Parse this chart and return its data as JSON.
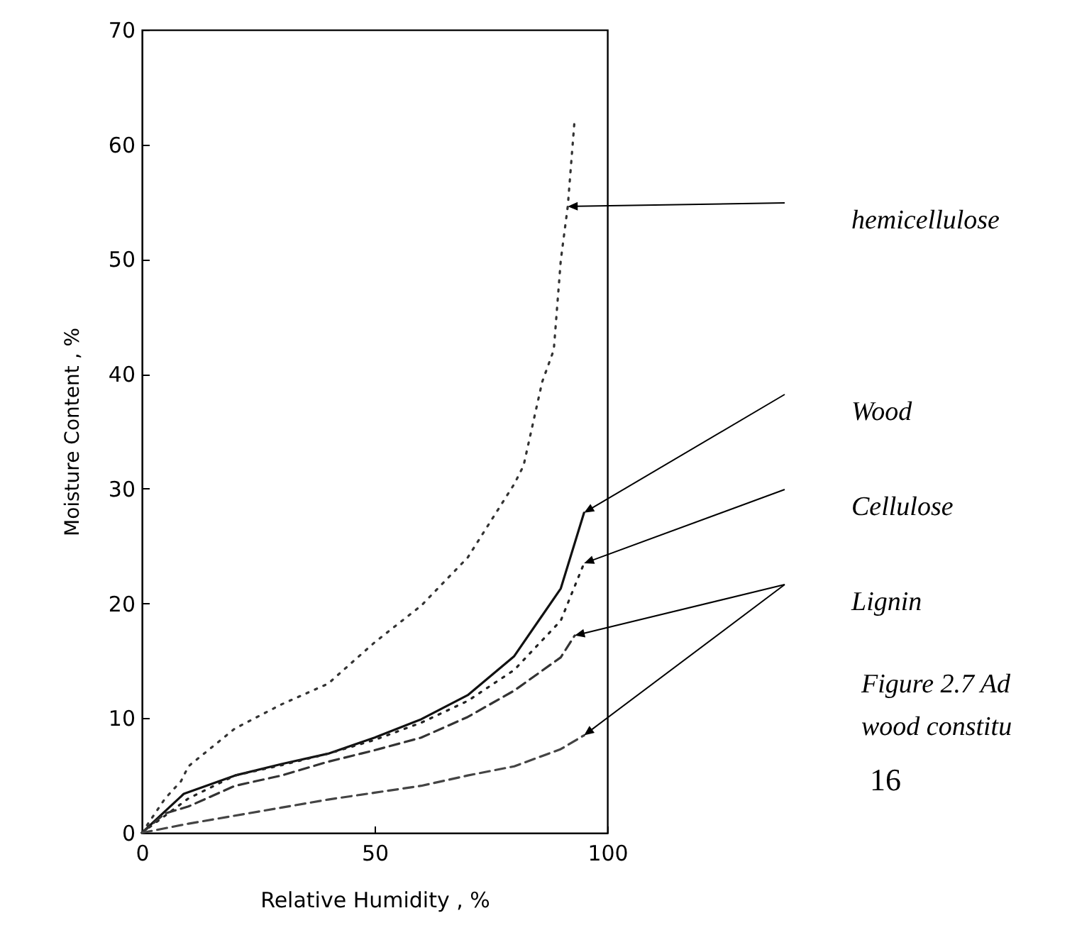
{
  "chart_data": {
    "type": "line",
    "xlabel": "Relative Humidity , %",
    "ylabel": "Moisture Content , %",
    "xlim": [
      0,
      100
    ],
    "xticks": [
      0,
      50,
      100
    ],
    "ylim": [
      0,
      70
    ],
    "yticks": [
      0,
      10,
      20,
      30,
      40,
      50,
      60,
      70
    ],
    "grid": false,
    "series": [
      {
        "name": "hemicellulose",
        "color": "#333333",
        "line_style": "dotted",
        "x": [
          0,
          5,
          8.4,
          10,
          20,
          30,
          40,
          50,
          60,
          70,
          80,
          82,
          86,
          88.5,
          90,
          91.5,
          93
        ],
        "values": [
          0,
          3,
          4.5,
          5.8,
          9.1,
          11.2,
          13,
          16.6,
          19.8,
          24,
          30.4,
          32,
          39.3,
          42.1,
          49.9,
          54.6,
          62.3
        ]
      },
      {
        "name": "Wood",
        "color": "#111111",
        "line_style": "solid",
        "x": [
          0,
          9,
          20,
          30,
          40,
          50,
          60,
          70,
          80,
          90,
          95
        ],
        "values": [
          0,
          3.4,
          5,
          6,
          6.9,
          8.3,
          9.9,
          12,
          15.4,
          21.3,
          27.9
        ]
      },
      {
        "name": "Cellulose",
        "color": "#222222",
        "line_style": "dotted",
        "x": [
          0,
          10,
          20,
          30,
          40,
          50,
          60,
          70,
          80,
          90,
          95
        ],
        "values": [
          0,
          3,
          5,
          5.9,
          6.9,
          8.1,
          9.6,
          11.5,
          14.2,
          18.5,
          23.5
        ]
      },
      {
        "name": "Lignin",
        "color": "#333333",
        "line_style": "dashed",
        "x": [
          0,
          5,
          10,
          20,
          30,
          40,
          50,
          60,
          70,
          80,
          90,
          93
        ],
        "values": [
          0,
          1.7,
          2.3,
          4.1,
          5,
          6.2,
          7.2,
          8.3,
          10.1,
          12.4,
          15.3,
          17.2
        ]
      },
      {
        "color": "#444444",
        "line_style": "dashed",
        "x": [
          0,
          10,
          20,
          30,
          40,
          50,
          60,
          70,
          80,
          90,
          95
        ],
        "values": [
          0,
          0.8,
          1.5,
          2.2,
          2.9,
          3.5,
          4.1,
          5,
          5.8,
          7.3,
          8.5
        ]
      }
    ],
    "annotations": [
      "Figure 2.7  Ad",
      "wood constitu",
      "16"
    ]
  }
}
